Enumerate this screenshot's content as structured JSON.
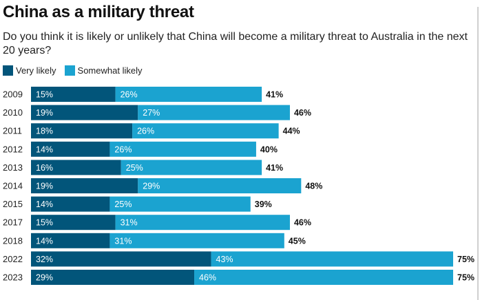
{
  "chart_data": {
    "type": "bar",
    "orientation": "horizontal",
    "stacked": true,
    "title": "China as a military threat",
    "subtitle": "Do you think it is likely or unlikely that China will become a military threat to Australia in the next 20 years?",
    "categories": [
      "2009",
      "2010",
      "2011",
      "2012",
      "2013",
      "2014",
      "2015",
      "2017",
      "2018",
      "2022",
      "2023"
    ],
    "series": [
      {
        "name": "Very likely",
        "color": "#02557a",
        "values": [
          15,
          19,
          18,
          14,
          16,
          19,
          14,
          15,
          14,
          32,
          29
        ]
      },
      {
        "name": "Somewhat likely",
        "color": "#1ba3d0",
        "values": [
          26,
          27,
          26,
          26,
          25,
          29,
          25,
          31,
          31,
          43,
          46
        ]
      }
    ],
    "totals": [
      41,
      46,
      44,
      40,
      41,
      48,
      39,
      46,
      45,
      75,
      75
    ],
    "value_suffix": "%",
    "xlim": [
      0,
      75
    ],
    "grid": false,
    "legend_position": "top-left"
  }
}
